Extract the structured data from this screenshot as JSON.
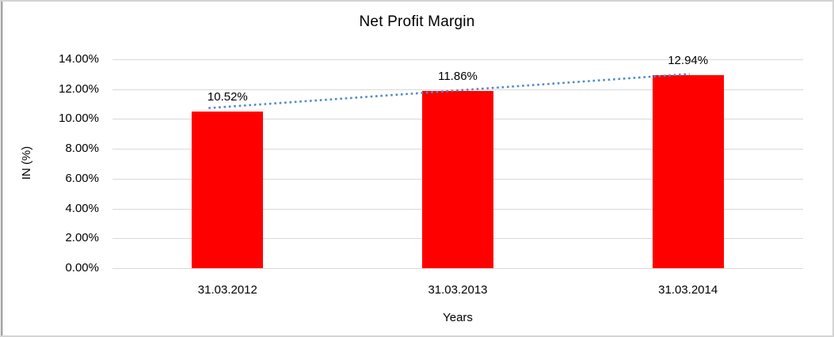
{
  "chart_data": {
    "type": "bar",
    "title": "Net Profit Margin",
    "xlabel": "Years",
    "ylabel": "IN (%)",
    "categories": [
      "31.03.2012",
      "31.03.2013",
      "31.03.2014"
    ],
    "values": [
      10.52,
      11.86,
      12.94
    ],
    "data_labels": [
      "10.52%",
      "11.86%",
      "12.94%"
    ],
    "ylim": [
      0,
      14
    ],
    "ytick_step": 2,
    "ytick_labels": [
      "0.00%",
      "2.00%",
      "4.00%",
      "6.00%",
      "8.00%",
      "10.00%",
      "12.00%",
      "14.00%"
    ],
    "grid": "horizontal",
    "legend": "none",
    "bar_color": "#ff0000",
    "trendline": {
      "style": "dotted",
      "color": "#4f8bc9"
    }
  }
}
